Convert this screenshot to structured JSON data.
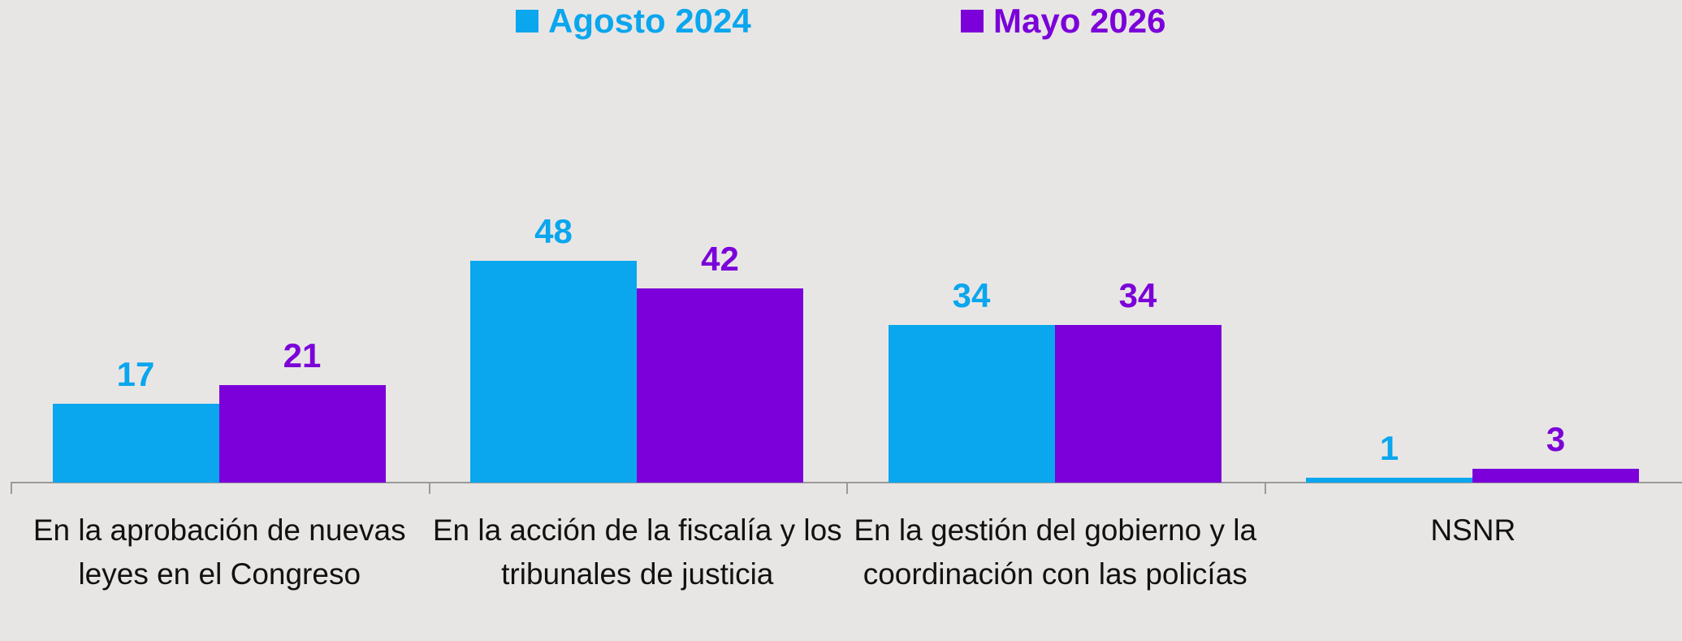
{
  "chart_data": {
    "type": "bar",
    "categories": [
      "En la aprobación de nuevas leyes en el Congreso",
      "En la acción de la fiscalía y los tribunales de justicia",
      "En la gestión del gobierno y la coordinación con las policías",
      "NSNR"
    ],
    "series": [
      {
        "name": "Agosto 2024",
        "color": "#0aa6ee",
        "values": [
          17,
          48,
          34,
          1
        ]
      },
      {
        "name": "Mayo 2026",
        "color": "#7b00d9",
        "values": [
          21,
          42,
          34,
          3
        ]
      }
    ],
    "ylim": [
      0,
      100
    ],
    "legend": "top"
  }
}
